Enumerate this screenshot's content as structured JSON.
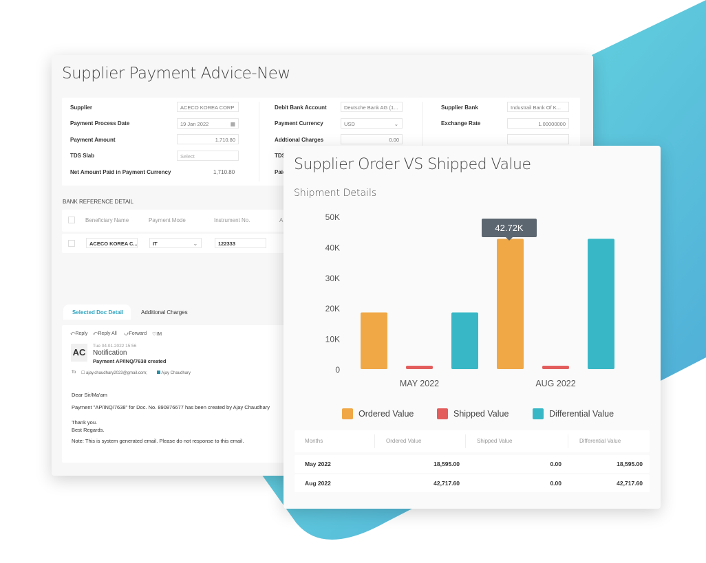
{
  "back_card": {
    "title": "Supplier Payment Advice-New",
    "fields": {
      "supplier_label": "Supplier",
      "supplier_value": "ACECO KOREA CORP",
      "process_date_label": "Payment Process Date",
      "process_date_value": "19 Jan 2022",
      "amount_label": "Payment Amount",
      "amount_value": "1,710.80",
      "tds_slab_label": "TDS Slab",
      "tds_slab_placeholder": "Select",
      "net_amount_label": "Net Amount Paid in Payment Currency",
      "net_amount_value": "1,710.80",
      "debit_bank_label": "Debit Bank Account",
      "debit_bank_value": "Deutsche Bank AG (1...",
      "currency_label": "Payment Currency",
      "currency_value": "USD",
      "additional_charges_label": "Addtional Charges",
      "additional_charges_value": "0.00",
      "tds_partial_label": "TDS",
      "paid_partial_label": "Paid",
      "supplier_bank_label": "Supplier Bank",
      "supplier_bank_value": "Industrail Bank Of K...",
      "exchange_rate_label": "Exchange Rate",
      "exchange_rate_value": "1.00000000"
    },
    "bank_reference": {
      "heading": "BANK REFERENCE DETAIL",
      "columns": [
        "Beneficiary Name",
        "Payment Mode",
        "Instrument No.",
        "A"
      ],
      "row": {
        "beneficiary": "ACECO KOREA C...",
        "mode": "IT",
        "instrument": "122333"
      }
    },
    "tabs": [
      "Selected Doc Detail",
      "Additional Charges"
    ],
    "email": {
      "actions": [
        "Reply",
        "Reply All",
        "Forward",
        "IM"
      ],
      "avatar": "AC",
      "date": "Tue 04.01.2022 15:56",
      "subject": "Notification",
      "summary": "Payment AP/INQ/7638 created",
      "to_label": "To",
      "to_email": "ajay.chaudhary2023@gmail.com;",
      "to_name": "Ajay Chaudhary",
      "greeting": "Dear Sir/Ma'am",
      "body": "Payment \"AP/INQ/7638\" for Doc. No. 890876677 has been created by Ajay Chaudhary",
      "thanks": "Thank you.",
      "regards": "Best Regards.",
      "note": "Note: This is system generated email. Please do not response to this email."
    }
  },
  "front_card": {
    "title": "Supplier Order VS Shipped Value",
    "subtitle": "Shipment Details",
    "tooltip": "42.72K",
    "table": {
      "columns": [
        "Months",
        "Ordered Value",
        "Shipped Value",
        "Differential Value"
      ],
      "rows": [
        [
          "May 2022",
          "18,595.00",
          "0.00",
          "18,595.00"
        ],
        [
          "Aug 2022",
          "42,717.60",
          "0.00",
          "42,717.60"
        ]
      ]
    }
  },
  "chart_data": {
    "type": "bar",
    "title": "Supplier Order VS Shipped Value",
    "categories": [
      "MAY 2022",
      "AUG 2022"
    ],
    "series": [
      {
        "name": "Ordered Value",
        "values": [
          18595,
          42717.6
        ],
        "color": "#f0a847"
      },
      {
        "name": "Shipped Value",
        "values": [
          0,
          0
        ],
        "color": "#e35d5d"
      },
      {
        "name": "Differential Value",
        "values": [
          18595,
          42717.6
        ],
        "color": "#38b8c6"
      }
    ],
    "yticks": [
      "0",
      "10K",
      "20K",
      "30K",
      "40K",
      "50K"
    ],
    "ylim": [
      0,
      50000
    ],
    "legend": "bottom"
  }
}
